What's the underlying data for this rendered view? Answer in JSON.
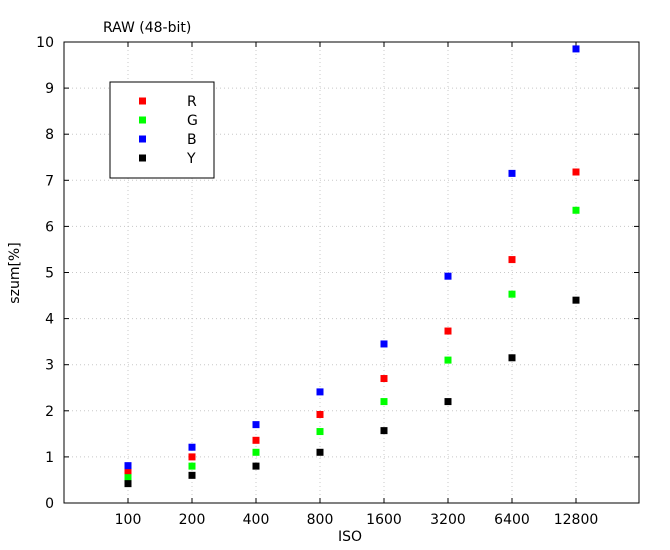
{
  "chart_data": {
    "type": "scatter",
    "title": "RAW (48-bit)",
    "xlabel": "ISO",
    "ylabel": "szum[%]",
    "categories": [
      "100",
      "200",
      "400",
      "800",
      "1600",
      "3200",
      "6400",
      "12800"
    ],
    "ylim": [
      0,
      10
    ],
    "yticks": [
      "0",
      "1",
      "2",
      "3",
      "4",
      "5",
      "6",
      "7",
      "8",
      "9",
      "10"
    ],
    "grid": true,
    "legend_position": "top-left",
    "series": [
      {
        "name": "R",
        "color": "#ff0000",
        "values": [
          0.68,
          1.0,
          1.36,
          1.92,
          2.7,
          3.73,
          5.28,
          7.18
        ]
      },
      {
        "name": "G",
        "color": "#00ff00",
        "values": [
          0.55,
          0.8,
          1.1,
          1.55,
          2.2,
          3.1,
          4.53,
          6.35
        ]
      },
      {
        "name": "B",
        "color": "#0000ff",
        "values": [
          0.81,
          1.21,
          1.7,
          2.41,
          3.45,
          4.92,
          7.15,
          9.85
        ]
      },
      {
        "name": "Y",
        "color": "#000000",
        "values": [
          0.42,
          0.6,
          0.8,
          1.1,
          1.57,
          2.2,
          3.15,
          4.4
        ]
      }
    ]
  }
}
